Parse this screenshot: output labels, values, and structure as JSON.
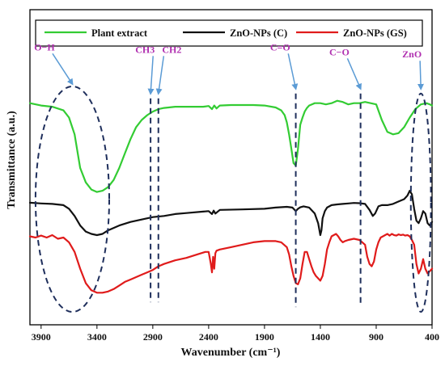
{
  "chart_data": {
    "type": "line",
    "title": "",
    "xlabel": "Wavenumber (cm⁻¹)",
    "ylabel": "Transmittance (a.u.)",
    "x_reversed": true,
    "xlim": [
      4000,
      400
    ],
    "ylim": [
      0,
      1
    ],
    "x_ticks": [
      3900,
      3400,
      2900,
      2400,
      1900,
      1400,
      900,
      400
    ],
    "x_tick_labels": [
      "3900",
      "3400",
      "2900",
      "2400",
      "1900",
      "1400",
      "900",
      "400"
    ],
    "grid": false,
    "legend_position": "top",
    "series": [
      {
        "name": "Plant extract",
        "color": "#33cc33",
        "x": [
          4000,
          3900,
          3800,
          3700,
          3650,
          3600,
          3550,
          3500,
          3450,
          3400,
          3350,
          3300,
          3250,
          3200,
          3150,
          3100,
          3050,
          3000,
          2950,
          2900,
          2850,
          2800,
          2700,
          2600,
          2450,
          2400,
          2370,
          2350,
          2330,
          2300,
          2200,
          2000,
          1900,
          1800,
          1750,
          1720,
          1700,
          1680,
          1660,
          1640,
          1620,
          1600,
          1580,
          1560,
          1540,
          1520,
          1500,
          1450,
          1400,
          1350,
          1300,
          1250,
          1200,
          1150,
          1100,
          1050,
          1000,
          950,
          900,
          850,
          800,
          750,
          700,
          650,
          600,
          550,
          500,
          450,
          420,
          400
        ],
        "y": [
          0.89,
          0.88,
          0.875,
          0.86,
          0.83,
          0.76,
          0.62,
          0.56,
          0.53,
          0.52,
          0.525,
          0.54,
          0.57,
          0.62,
          0.68,
          0.74,
          0.79,
          0.82,
          0.84,
          0.855,
          0.865,
          0.87,
          0.875,
          0.875,
          0.875,
          0.878,
          0.865,
          0.88,
          0.868,
          0.88,
          0.882,
          0.882,
          0.88,
          0.872,
          0.86,
          0.84,
          0.81,
          0.76,
          0.7,
          0.64,
          0.63,
          0.7,
          0.8,
          0.83,
          0.855,
          0.87,
          0.88,
          0.89,
          0.89,
          0.885,
          0.89,
          0.9,
          0.895,
          0.885,
          0.89,
          0.89,
          0.895,
          0.89,
          0.885,
          0.82,
          0.77,
          0.76,
          0.765,
          0.79,
          0.83,
          0.865,
          0.885,
          0.89,
          0.885,
          0.88
        ]
      },
      {
        "name": "ZnO-NPs (C)",
        "color": "#111111",
        "x": [
          4000,
          3900,
          3800,
          3700,
          3650,
          3600,
          3550,
          3500,
          3450,
          3400,
          3350,
          3300,
          3200,
          3100,
          3000,
          2900,
          2800,
          2700,
          2600,
          2450,
          2400,
          2370,
          2355,
          2340,
          2300,
          2100,
          1900,
          1800,
          1700,
          1650,
          1620,
          1600,
          1580,
          1550,
          1500,
          1450,
          1420,
          1400,
          1390,
          1380,
          1360,
          1340,
          1320,
          1300,
          1250,
          1200,
          1150,
          1100,
          1050,
          1000,
          960,
          930,
          910,
          880,
          850,
          800,
          750,
          700,
          650,
          620,
          600,
          580,
          560,
          540,
          520,
          500,
          480,
          460,
          440,
          420,
          400
        ],
        "y": [
          0.475,
          0.472,
          0.47,
          0.465,
          0.45,
          0.42,
          0.38,
          0.355,
          0.345,
          0.34,
          0.345,
          0.36,
          0.38,
          0.395,
          0.405,
          0.415,
          0.42,
          0.428,
          0.432,
          0.438,
          0.44,
          0.428,
          0.442,
          0.43,
          0.445,
          0.447,
          0.45,
          0.455,
          0.458,
          0.455,
          0.44,
          0.45,
          0.456,
          0.46,
          0.455,
          0.43,
          0.39,
          0.34,
          0.36,
          0.41,
          0.44,
          0.455,
          0.46,
          0.465,
          0.468,
          0.47,
          0.472,
          0.474,
          0.473,
          0.47,
          0.445,
          0.42,
          0.43,
          0.46,
          0.465,
          0.465,
          0.47,
          0.48,
          0.49,
          0.505,
          0.525,
          0.51,
          0.45,
          0.4,
          0.39,
          0.41,
          0.44,
          0.43,
          0.39,
          0.38,
          0.395
        ]
      },
      {
        "name": "ZnO-NPs (GS)",
        "color": "#e01b1b",
        "x": [
          4000,
          3950,
          3900,
          3850,
          3800,
          3750,
          3700,
          3650,
          3600,
          3550,
          3500,
          3450,
          3400,
          3350,
          3300,
          3250,
          3200,
          3150,
          3100,
          3050,
          3000,
          2950,
          2900,
          2850,
          2800,
          2700,
          2600,
          2500,
          2430,
          2400,
          2380,
          2370,
          2360,
          2350,
          2340,
          2330,
          2300,
          2200,
          2100,
          2000,
          1900,
          1800,
          1750,
          1700,
          1680,
          1660,
          1640,
          1620,
          1600,
          1580,
          1560,
          1540,
          1520,
          1500,
          1480,
          1460,
          1440,
          1420,
          1400,
          1380,
          1360,
          1340,
          1320,
          1300,
          1280,
          1260,
          1240,
          1220,
          1200,
          1180,
          1150,
          1100,
          1050,
          1000,
          980,
          960,
          940,
          920,
          900,
          880,
          860,
          840,
          820,
          800,
          780,
          760,
          740,
          720,
          700,
          680,
          660,
          640,
          620,
          600,
          580,
          560,
          540,
          520,
          500,
          480,
          460,
          440,
          420,
          400
        ],
        "y": [
          0.335,
          0.33,
          0.338,
          0.33,
          0.34,
          0.325,
          0.33,
          0.31,
          0.27,
          0.2,
          0.14,
          0.11,
          0.1,
          0.1,
          0.105,
          0.115,
          0.13,
          0.145,
          0.155,
          0.165,
          0.175,
          0.185,
          0.195,
          0.21,
          0.22,
          0.235,
          0.245,
          0.26,
          0.27,
          0.27,
          0.22,
          0.185,
          0.25,
          0.2,
          0.265,
          0.275,
          0.28,
          0.29,
          0.3,
          0.31,
          0.315,
          0.315,
          0.31,
          0.29,
          0.26,
          0.21,
          0.17,
          0.14,
          0.135,
          0.16,
          0.22,
          0.27,
          0.27,
          0.24,
          0.21,
          0.185,
          0.17,
          0.16,
          0.15,
          0.17,
          0.22,
          0.28,
          0.31,
          0.335,
          0.34,
          0.345,
          0.335,
          0.32,
          0.31,
          0.315,
          0.32,
          0.325,
          0.32,
          0.3,
          0.25,
          0.22,
          0.21,
          0.23,
          0.28,
          0.31,
          0.33,
          0.335,
          0.34,
          0.345,
          0.338,
          0.345,
          0.34,
          0.338,
          0.343,
          0.34,
          0.342,
          0.338,
          0.34,
          0.335,
          0.32,
          0.3,
          0.22,
          0.18,
          0.2,
          0.24,
          0.2,
          0.18,
          0.19,
          0.2
        ]
      }
    ],
    "annotations": [
      {
        "label": "O−H",
        "x": 3620,
        "y_top": 0.96,
        "y_bottom": 0.02,
        "style": "ellipse",
        "x_half_width": 330,
        "label_x": 3870,
        "label_y": 1.11,
        "arrow_to_x": 3620,
        "arrow_to_y": 0.97
      },
      {
        "label": "CH3",
        "x": 2920,
        "y_top": 0.91,
        "y_bottom": 0.06,
        "style": "line",
        "label_x": 2970,
        "label_y": 1.1,
        "arrow_to_x": 2920,
        "arrow_to_y": 0.93
      },
      {
        "label": "CH2",
        "x": 2850,
        "y_top": 0.91,
        "y_bottom": 0.06,
        "style": "line",
        "label_x": 2730,
        "label_y": 1.1,
        "arrow_to_x": 2850,
        "arrow_to_y": 0.93
      },
      {
        "label": "C=O",
        "x": 1620,
        "y_top": 0.93,
        "y_bottom": 0.04,
        "style": "line",
        "label_x": 1760,
        "label_y": 1.11,
        "arrow_to_x": 1620,
        "arrow_to_y": 0.95
      },
      {
        "label": "C−O",
        "x": 1040,
        "y_top": 0.93,
        "y_bottom": 0.05,
        "style": "line",
        "label_x": 1230,
        "label_y": 1.09,
        "arrow_to_x": 1040,
        "arrow_to_y": 0.95
      },
      {
        "label": "ZnO",
        "x": 500,
        "y_top": 0.93,
        "y_bottom": 0.02,
        "style": "ellipse",
        "x_half_width": 90,
        "label_x": 580,
        "label_y": 1.08,
        "arrow_to_x": 500,
        "arrow_to_y": 0.95
      }
    ]
  }
}
